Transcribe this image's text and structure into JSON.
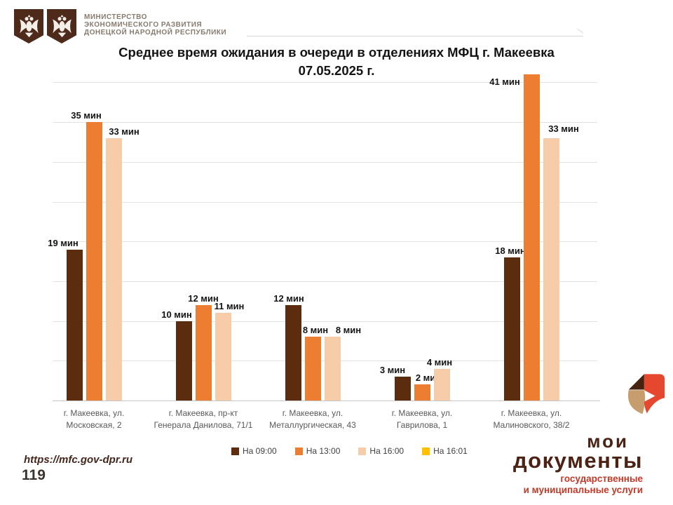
{
  "header": {
    "ministry_lines": [
      "МИНИСТЕРСТВО",
      "ЭКОНОМИЧЕСКОГО РАЗВИТИЯ",
      "ДОНЕЦКОЙ НАРОДНОЙ РЕСПУБЛИКИ"
    ]
  },
  "chart_data": {
    "type": "bar",
    "title_lines": [
      "Среднее время ожидания в очереди в отделениях МФЦ г. Макеевка",
      "07.05.2025 г."
    ],
    "unit": "мин",
    "value_label_format": "{v} мин",
    "categories": [
      "г. Макеевка, ул. Московская, 2",
      "г. Макеевка, пр-кт Генерала Данилова, 71/1",
      "г. Макеевка, ул. Металлургическая, 43",
      "г. Макеевка, ул. Гаврилова, 1",
      "г. Макеевка, ул. Малиновского, 38/2"
    ],
    "series": [
      {
        "name": "На 09:00",
        "color": "#5B2D0E",
        "values": [
          19,
          10,
          12,
          3,
          18
        ]
      },
      {
        "name": "На 13:00",
        "color": "#ED7D31",
        "values": [
          35,
          12,
          8,
          2,
          41
        ]
      },
      {
        "name": "На 16:00",
        "color": "#F7CDA9",
        "values": [
          33,
          11,
          8,
          4,
          33
        ]
      },
      {
        "name": "На 16:01",
        "color": "#FFC000",
        "values": []
      }
    ],
    "ylim": [
      0,
      40
    ],
    "gridline_step": 5,
    "grid": true,
    "legend_position": "bottom"
  },
  "footer": {
    "url": "https://mfc.gov-dpr.ru",
    "page_number": "119"
  },
  "brand": {
    "title_line1": "мои",
    "title_line2": "документы",
    "subtitle_line1": "государственные",
    "subtitle_line2": "и муниципальные услуги",
    "accent_color": "#C23A28",
    "brown_color": "#4B2214"
  }
}
